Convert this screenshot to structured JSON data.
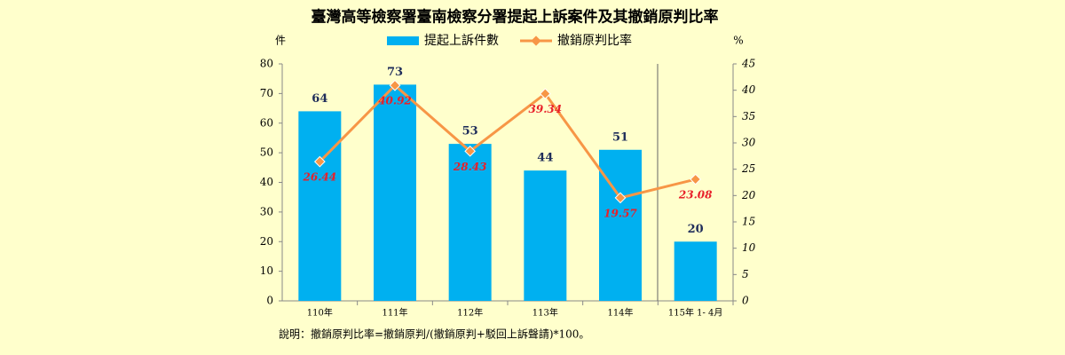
{
  "chart_data": {
    "type": "bar",
    "title": "臺灣高等檢察署臺南檢察分署提起上訴案件及其撤銷原判比率",
    "y_unit": "件",
    "y2_unit": "%",
    "categories": [
      "110年",
      "111年",
      "112年",
      "113年",
      "114年",
      "115年 1- 4月"
    ],
    "series": [
      {
        "name": "提起上訴件數",
        "type": "bar",
        "color": "#00b0f0",
        "values": [
          64,
          73,
          53,
          44,
          51,
          20
        ]
      },
      {
        "name": "撤銷原判比率",
        "type": "line",
        "axis": "y2",
        "color": "#f79646",
        "values": [
          26.44,
          40.92,
          28.43,
          39.34,
          19.57,
          23.08
        ]
      }
    ],
    "ylim": [
      0,
      80
    ],
    "yticks": [
      0,
      10,
      20,
      30,
      40,
      50,
      60,
      70,
      80
    ],
    "y2lim": [
      0,
      45
    ],
    "y2ticks": [
      0,
      5,
      10,
      15,
      20,
      25,
      30,
      35,
      40,
      45
    ],
    "legend": "top",
    "note": "說明：撤銷原判比率=撤銷原判/(撤銷原判+駁回上訴聲請)*100。"
  }
}
